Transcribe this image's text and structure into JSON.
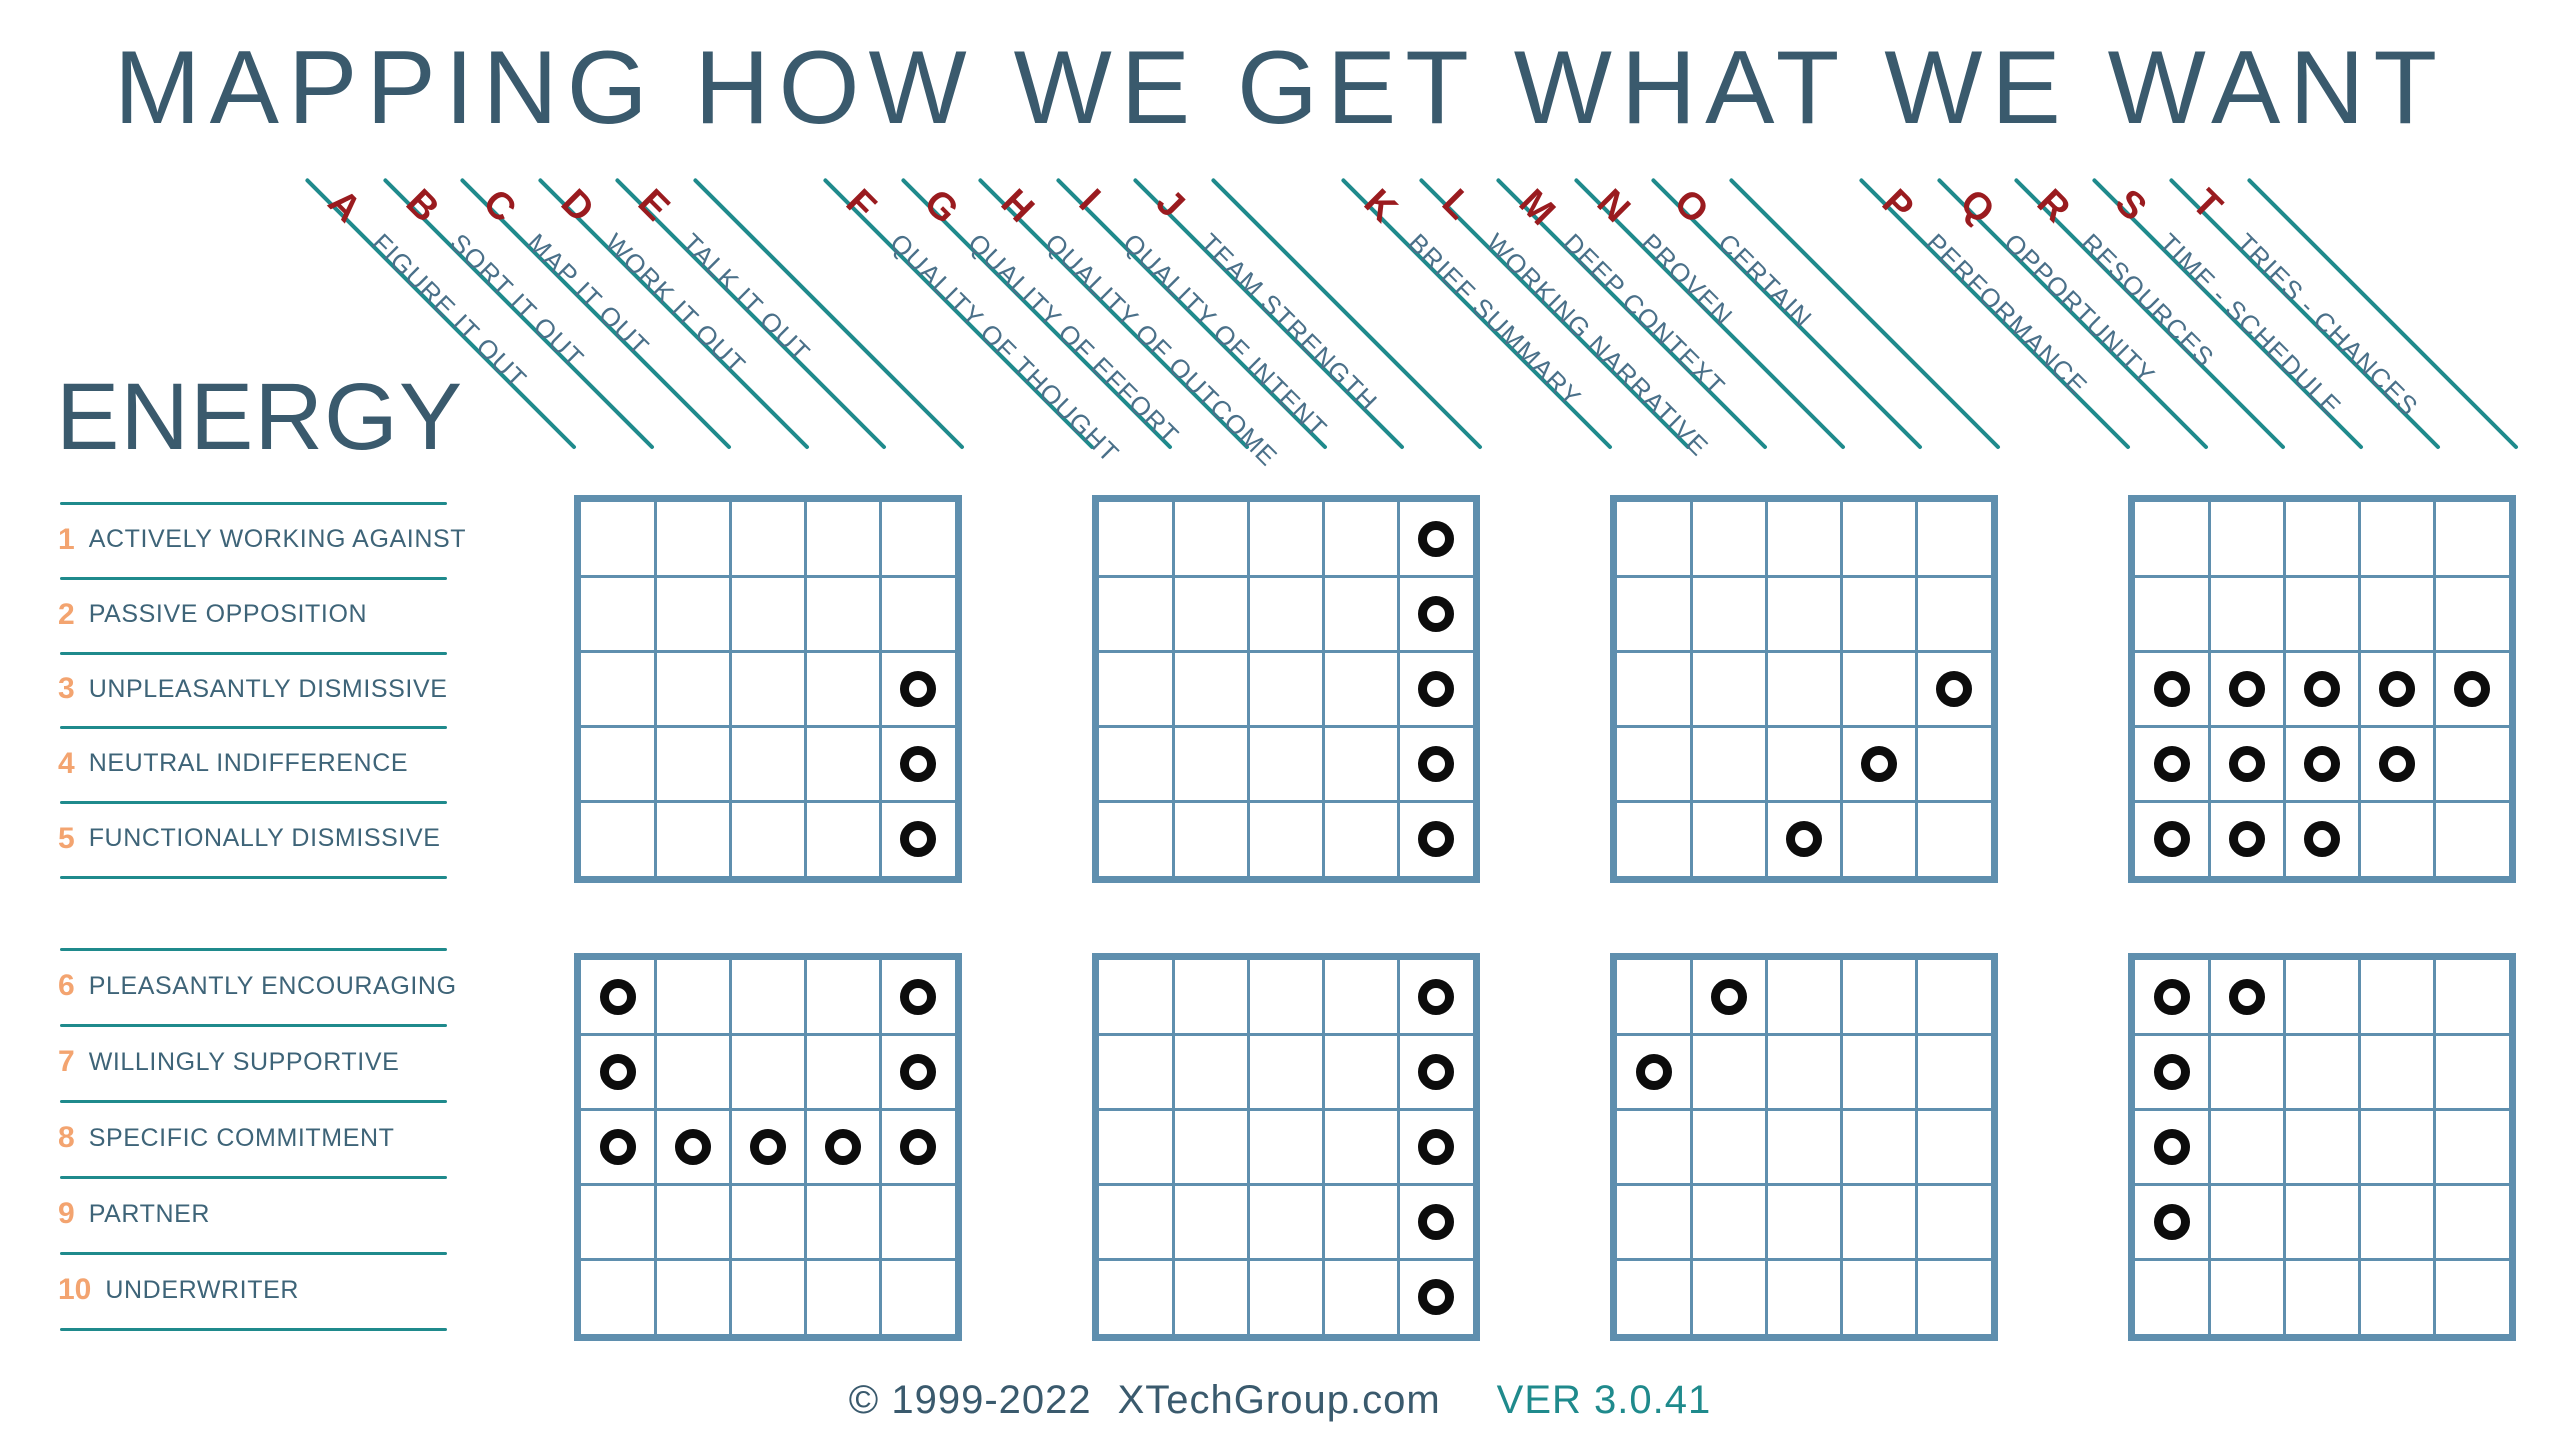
{
  "theme": {
    "slate": "#3a5a6d",
    "slate_mid": "#4a7089",
    "row_text": "#3e6478",
    "teal": "#1f8a8c",
    "red": "#9a1b1f",
    "orange": "#f3a470",
    "grid_blue": "#5f8fae",
    "mark_black": "#0c0c0c"
  },
  "title": "MAPPING HOW WE GET WHAT WE WANT",
  "energy": {
    "heading": "ENERGY",
    "rows": [
      {
        "num": "1",
        "label": "ACTIVELY WORKING AGAINST"
      },
      {
        "num": "2",
        "label": "PASSIVE OPPOSITION"
      },
      {
        "num": "3",
        "label": "UNPLEASANTLY DISMISSIVE"
      },
      {
        "num": "4",
        "label": "NEUTRAL INDIFFERENCE"
      },
      {
        "num": "5",
        "label": "FUNCTIONALLY DISMISSIVE"
      },
      {
        "num": "6",
        "label": "PLEASANTLY ENCOURAGING"
      },
      {
        "num": "7",
        "label": "WILLINGLY SUPPORTIVE"
      },
      {
        "num": "8",
        "label": "SPECIFIC COMMITMENT"
      },
      {
        "num": "9",
        "label": "PARTNER"
      },
      {
        "num": "10",
        "label": "UNDERWRITER"
      }
    ]
  },
  "columns": [
    {
      "letter": "A",
      "label": "FIGURE IT OUT"
    },
    {
      "letter": "B",
      "label": "SORT IT OUT"
    },
    {
      "letter": "C",
      "label": "MAP IT OUT"
    },
    {
      "letter": "D",
      "label": "WORK IT OUT"
    },
    {
      "letter": "E",
      "label": "TALK IT OUT"
    },
    {
      "letter": "F",
      "label": "QUALITY OF THOUGHT"
    },
    {
      "letter": "G",
      "label": "QUALITY OF EFFORT"
    },
    {
      "letter": "H",
      "label": "QUALITY OF OUTCOME"
    },
    {
      "letter": "I",
      "label": "QUALITY OF INTENT"
    },
    {
      "letter": "J",
      "label": "TEAM STRENGTH"
    },
    {
      "letter": "K",
      "label": "BRIEF SUMMARY"
    },
    {
      "letter": "L",
      "label": "WORKING NARRATIVE"
    },
    {
      "letter": "M",
      "label": "DEEP CONTEXT"
    },
    {
      "letter": "N",
      "label": "PROVEN"
    },
    {
      "letter": "O",
      "label": "CERTAIN"
    },
    {
      "letter": "P",
      "label": "PERFORMANCE"
    },
    {
      "letter": "Q",
      "label": "OPPORTUNITY"
    },
    {
      "letter": "R",
      "label": "RESOURCES"
    },
    {
      "letter": "S",
      "label": "TIME - SCHEDULE"
    },
    {
      "letter": "T",
      "label": "TRIES - CHANCES"
    }
  ],
  "marks": [
    [
      "E",
      3
    ],
    [
      "E",
      4
    ],
    [
      "E",
      5
    ],
    [
      "J",
      1
    ],
    [
      "J",
      2
    ],
    [
      "J",
      3
    ],
    [
      "J",
      4
    ],
    [
      "J",
      5
    ],
    [
      "O",
      3
    ],
    [
      "N",
      4
    ],
    [
      "M",
      5
    ],
    [
      "P",
      3
    ],
    [
      "Q",
      3
    ],
    [
      "R",
      3
    ],
    [
      "S",
      3
    ],
    [
      "T",
      3
    ],
    [
      "P",
      4
    ],
    [
      "Q",
      4
    ],
    [
      "R",
      4
    ],
    [
      "S",
      4
    ],
    [
      "P",
      5
    ],
    [
      "Q",
      5
    ],
    [
      "R",
      5
    ],
    [
      "A",
      6
    ],
    [
      "E",
      6
    ],
    [
      "A",
      7
    ],
    [
      "E",
      7
    ],
    [
      "A",
      8
    ],
    [
      "B",
      8
    ],
    [
      "C",
      8
    ],
    [
      "D",
      8
    ],
    [
      "E",
      8
    ],
    [
      "J",
      6
    ],
    [
      "J",
      7
    ],
    [
      "J",
      8
    ],
    [
      "J",
      9
    ],
    [
      "J",
      10
    ],
    [
      "L",
      6
    ],
    [
      "K",
      7
    ],
    [
      "P",
      6
    ],
    [
      "Q",
      6
    ],
    [
      "P",
      7
    ],
    [
      "P",
      8
    ],
    [
      "P",
      9
    ]
  ],
  "footer": {
    "copyright": "©  1999-2022",
    "site": "XTechGroup.com",
    "version": "VER 3.0.41"
  }
}
